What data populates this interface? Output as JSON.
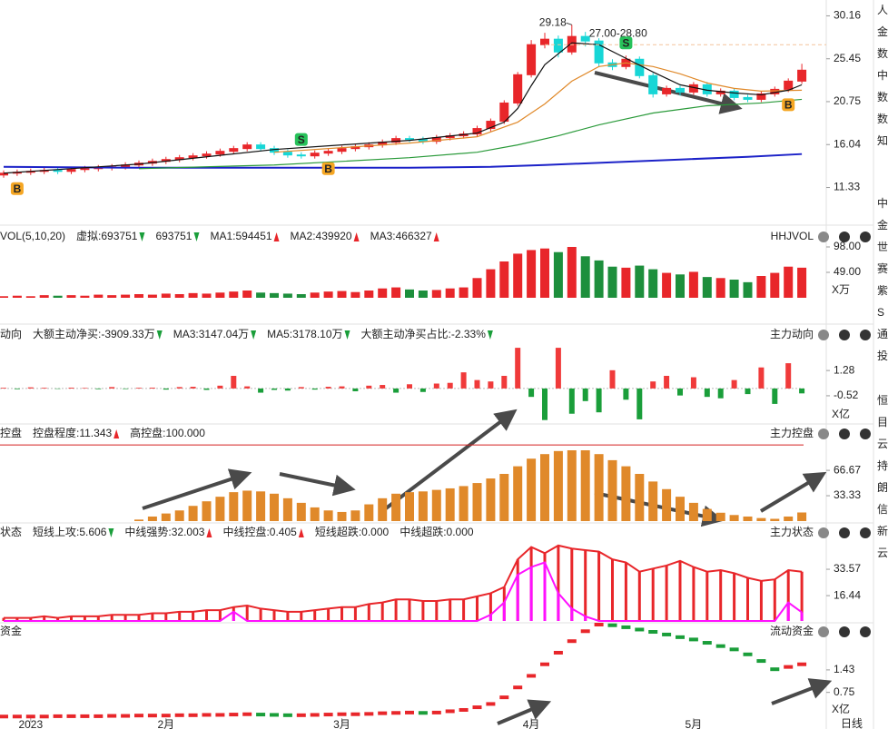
{
  "chart_data": [
    {
      "type": "candlestick",
      "open": [
        12.7,
        12.9,
        13.0,
        13.1,
        13.2,
        13.1,
        13.3,
        13.4,
        13.5,
        13.6,
        13.8,
        14.0,
        14.2,
        14.4,
        14.6,
        14.8,
        15.0,
        15.3,
        15.6,
        16.0,
        15.6,
        15.2,
        14.9,
        14.8,
        15.1,
        15.3,
        15.6,
        15.8,
        16.0,
        16.3,
        16.7,
        16.6,
        16.4,
        16.8,
        17.0,
        17.2,
        17.8,
        18.6,
        20.6,
        23.7,
        27.0,
        27.6,
        26.2,
        27.9,
        27.4,
        25.0,
        24.6,
        25.4,
        23.6,
        21.6,
        22.2,
        21.8,
        22.6,
        21.6,
        21.9,
        21.2,
        21.0,
        21.6,
        22.1,
        23.0
      ],
      "high": [
        13.2,
        13.3,
        13.4,
        13.5,
        13.5,
        13.6,
        13.7,
        13.8,
        13.9,
        14.1,
        14.3,
        14.5,
        14.7,
        14.9,
        15.1,
        15.3,
        15.6,
        15.9,
        16.3,
        16.3,
        15.9,
        15.5,
        15.2,
        15.4,
        15.6,
        15.9,
        16.1,
        16.3,
        16.6,
        17.0,
        17.0,
        16.9,
        17.1,
        17.3,
        17.5,
        18.1,
        18.9,
        20.9,
        24.0,
        27.5,
        28.3,
        28.0,
        29.18,
        28.4,
        27.7,
        25.4,
        25.8,
        25.7,
        23.9,
        22.5,
        22.5,
        22.9,
        22.9,
        22.2,
        22.2,
        21.5,
        21.9,
        22.4,
        23.3,
        24.9
      ],
      "low": [
        12.4,
        12.6,
        12.7,
        12.8,
        12.8,
        12.8,
        13.0,
        13.1,
        13.2,
        13.3,
        13.5,
        13.7,
        13.9,
        14.1,
        14.3,
        14.5,
        14.7,
        15.0,
        15.3,
        15.3,
        14.9,
        14.6,
        14.5,
        14.5,
        14.8,
        15.0,
        15.3,
        15.5,
        15.7,
        16.0,
        16.3,
        16.1,
        16.1,
        16.5,
        16.7,
        16.9,
        17.5,
        18.3,
        20.3,
        23.4,
        26.6,
        25.6,
        25.9,
        26.8,
        24.6,
        24.2,
        24.3,
        23.3,
        21.2,
        21.3,
        21.4,
        21.5,
        21.3,
        21.3,
        20.9,
        20.7,
        20.7,
        21.3,
        21.8,
        22.7
      ],
      "close": [
        12.9,
        13.0,
        13.1,
        13.2,
        13.1,
        13.3,
        13.4,
        13.5,
        13.6,
        13.8,
        14.0,
        14.2,
        14.4,
        14.6,
        14.8,
        15.0,
        15.3,
        15.6,
        16.0,
        15.6,
        15.2,
        14.9,
        14.8,
        15.1,
        15.3,
        15.6,
        15.8,
        16.0,
        16.3,
        16.7,
        16.6,
        16.4,
        16.8,
        17.0,
        17.2,
        17.8,
        18.6,
        20.6,
        23.7,
        27.0,
        27.6,
        26.2,
        27.9,
        27.4,
        25.0,
        24.6,
        25.4,
        23.6,
        21.6,
        22.2,
        21.8,
        22.6,
        21.6,
        21.9,
        21.2,
        21.0,
        21.6,
        22.1,
        23.0,
        24.2
      ],
      "up_color": "#e8262a",
      "down_color": "#17d6d6",
      "ylim": [
        7.5,
        31.5
      ],
      "yticks": [
        30.16,
        25.45,
        20.75,
        16.04,
        11.33
      ],
      "lines": [
        {
          "color": "#1c22c8",
          "x": [
            0,
            10,
            20,
            30,
            36,
            40,
            45,
            50,
            55,
            59
          ],
          "values": [
            13.6,
            13.5,
            13.5,
            13.5,
            13.6,
            13.8,
            14.1,
            14.4,
            14.7,
            15.0
          ]
        },
        {
          "color": "#2a9a3a",
          "x": [
            10,
            20,
            30,
            35,
            38,
            41,
            44,
            48,
            52,
            56,
            59
          ],
          "values": [
            13.4,
            13.8,
            14.6,
            15.2,
            16.0,
            17.0,
            18.2,
            19.5,
            20.3,
            20.6,
            21.0
          ]
        },
        {
          "color": "#e0892a",
          "x": [
            20,
            30,
            35,
            38,
            40,
            42,
            44,
            46,
            48,
            50,
            52,
            54,
            56,
            59
          ],
          "values": [
            15.2,
            16.2,
            16.9,
            18.5,
            20.5,
            23.0,
            24.6,
            25.0,
            24.6,
            23.8,
            22.8,
            22.2,
            21.9,
            22.0
          ]
        },
        {
          "color": "#111111",
          "x": [
            0,
            10,
            20,
            30,
            35,
            37,
            38,
            39,
            40,
            42,
            44,
            46,
            48,
            50,
            52,
            54,
            56,
            58,
            59
          ],
          "values": [
            12.9,
            13.9,
            15.5,
            16.5,
            17.3,
            18.5,
            20.0,
            22.5,
            24.8,
            27.2,
            27.0,
            25.5,
            24.0,
            22.6,
            22.0,
            21.7,
            21.5,
            22.0,
            22.6
          ]
        }
      ],
      "peak_label": {
        "x": 42,
        "value": 29.18,
        "label": "29.18"
      },
      "range_label": {
        "x": 43,
        "range": [
          27.0,
          28.8
        ],
        "label": "27.00-28.80"
      },
      "signals": [
        {
          "kind": "buy",
          "label": "B",
          "x": 1
        },
        {
          "kind": "sell",
          "label": "S",
          "x": 22
        },
        {
          "kind": "buy",
          "label": "B",
          "x": 24
        },
        {
          "kind": "sell",
          "label": "S",
          "x": 46
        },
        {
          "kind": "buy",
          "label": "B",
          "x": 58
        }
      ]
    },
    {
      "type": "bar",
      "name": "VOL(5,10,20)",
      "title": "HHJVOL",
      "color_by": "price",
      "legend": [
        {
          "text": "虚拟:693751",
          "color": "#222222",
          "trend": "down"
        },
        {
          "text": "693751",
          "color": "#e0892a",
          "trend": "down"
        },
        {
          "text": "MA1:594451",
          "color": "#e020e0",
          "trend": "up"
        },
        {
          "text": "MA2:439920",
          "color": "#1a9e3a",
          "trend": "up"
        },
        {
          "text": "MA3:466327",
          "color": "#aaaaaa",
          "trend": "up"
        }
      ],
      "values": [
        3,
        4,
        3,
        5,
        4,
        5,
        4,
        6,
        5,
        6,
        7,
        6,
        8,
        7,
        9,
        8,
        10,
        12,
        14,
        10,
        9,
        8,
        7,
        10,
        12,
        13,
        11,
        14,
        18,
        20,
        16,
        14,
        15,
        18,
        20,
        38,
        55,
        70,
        85,
        92,
        95,
        88,
        98,
        80,
        72,
        60,
        58,
        62,
        55,
        48,
        45,
        50,
        40,
        38,
        35,
        30,
        42,
        48,
        60,
        58
      ],
      "colors": {
        "up": "#e8262a",
        "down": "#1d8f3c"
      },
      "ylim": [
        0,
        133
      ],
      "yticks": [
        {
          "value": 98,
          "label": "98.00"
        },
        {
          "value": 49,
          "label": "49.00"
        }
      ],
      "unit": "X万"
    },
    {
      "type": "bar",
      "name": "动向",
      "title": "主力动向",
      "color_by": "sign",
      "legend": [
        {
          "text": "大额主动净买:-3909.33万",
          "color": "#e8262a",
          "trend": "down"
        },
        {
          "text": "MA3:3147.04万",
          "color": "#e0892a",
          "trend": "down"
        },
        {
          "text": "MA5:3178.10万",
          "color": "#e020e0",
          "trend": "down"
        },
        {
          "text": "大额主动净买占比:-2.33%",
          "color": "#e8262a",
          "trend": "down"
        }
      ],
      "values": [
        0.05,
        -0.05,
        0.08,
        0.05,
        -0.03,
        0.06,
        0.04,
        -0.05,
        0.1,
        -0.04,
        0.05,
        0.06,
        -0.08,
        0.1,
        0.12,
        -0.1,
        0.2,
        0.9,
        0.15,
        -0.3,
        -0.1,
        -0.15,
        0.1,
        -0.08,
        0.12,
        0.15,
        -0.2,
        0.2,
        0.25,
        -0.3,
        0.3,
        -0.25,
        0.35,
        0.4,
        1.15,
        0.6,
        0.5,
        0.9,
        2.9,
        -0.6,
        -2.25,
        2.9,
        -1.8,
        -0.9,
        -1.7,
        1.3,
        -0.8,
        -2.2,
        0.5,
        0.9,
        -0.5,
        0.8,
        -0.6,
        -0.7,
        0.6,
        -0.4,
        1.5,
        -1.1,
        1.8,
        -0.35
      ],
      "colors": {
        "up": "#f03a3a",
        "down": "#1a9e3a"
      },
      "ylim": [
        -2.4,
        3.1
      ],
      "yticks": [
        1.28,
        -0.52
      ],
      "unit": "X亿"
    },
    {
      "type": "bar",
      "name": "控盘",
      "title": "主力控盘",
      "legend": [
        {
          "text": "控盘程度:11.343",
          "color": "#e0892a",
          "trend": "up"
        },
        {
          "text": "高控盘:100.000",
          "color": "#d42020"
        }
      ],
      "values": [
        0,
        0,
        0,
        0,
        0,
        0,
        0,
        0,
        0,
        0,
        2,
        6,
        10,
        14,
        20,
        26,
        32,
        38,
        40,
        39,
        36,
        30,
        24,
        18,
        14,
        12,
        14,
        22,
        30,
        36,
        38,
        39,
        41,
        43,
        46,
        50,
        56,
        62,
        72,
        82,
        88,
        92,
        93,
        93,
        88,
        80,
        72,
        62,
        52,
        42,
        32,
        24,
        16,
        11,
        8,
        6,
        4,
        3,
        6,
        11.343
      ],
      "color": "#e0892a",
      "hline": {
        "value": 100,
        "color": "#d42020"
      },
      "ylim": [
        0,
        124
      ],
      "yticks": [
        66.67,
        33.33
      ]
    },
    {
      "type": "bar",
      "name": "状态",
      "title": "主力状态",
      "legend": [
        {
          "text": "短线上攻:5.606",
          "color": "#e020e0",
          "trend": "down"
        },
        {
          "text": "中线强势:32.003",
          "color": "#e8262a",
          "trend": "up"
        },
        {
          "text": "中线控盘:0.405",
          "color": "#e0892a",
          "trend": "up"
        },
        {
          "text": "短线超跌:0.000",
          "color": "#1c22c8"
        },
        {
          "text": "中线超跌:0.000",
          "color": "#1a9e3a"
        }
      ],
      "series": [
        {
          "color": "#e8262a",
          "values": [
            2,
            2,
            2,
            3,
            2,
            3,
            3,
            3,
            4,
            4,
            4,
            5,
            5,
            6,
            6,
            7,
            7,
            9,
            10,
            8,
            7,
            6,
            6,
            7,
            8,
            9,
            9,
            11,
            12,
            14,
            14,
            13,
            13,
            14,
            14,
            16,
            18,
            22,
            40,
            48,
            44,
            49,
            47,
            46,
            45,
            40,
            38,
            32,
            34,
            36,
            39,
            35,
            32,
            33,
            31,
            28,
            26,
            27,
            33,
            32.003
          ]
        },
        {
          "color": "#ff10ff",
          "values": [
            0,
            0,
            0,
            0,
            0,
            0,
            0,
            0,
            0,
            0,
            0,
            0,
            0,
            0,
            0,
            0,
            0,
            6,
            0,
            0,
            0,
            0,
            0,
            0,
            0,
            0,
            0,
            0,
            0,
            0,
            0,
            0,
            0,
            0,
            0,
            0,
            4,
            12,
            30,
            35,
            38,
            18,
            8,
            3,
            0,
            0,
            0,
            0,
            0,
            0,
            0,
            0,
            0,
            0,
            0,
            0,
            0,
            0,
            12,
            5.606
          ]
        }
      ],
      "ylim": [
        0,
        55.4
      ],
      "yticks": [
        33.57,
        16.44
      ]
    },
    {
      "type": "step",
      "name": "资金",
      "title": "流动资金",
      "values": [
        0.02,
        0.02,
        0.02,
        0.02,
        0.03,
        0.03,
        0.03,
        0.03,
        0.04,
        0.04,
        0.05,
        0.05,
        0.05,
        0.06,
        0.06,
        0.07,
        0.07,
        0.08,
        0.09,
        0.08,
        0.07,
        0.06,
        0.06,
        0.07,
        0.08,
        0.09,
        0.09,
        0.1,
        0.12,
        0.13,
        0.14,
        0.13,
        0.14,
        0.18,
        0.22,
        0.3,
        0.4,
        0.6,
        0.9,
        1.25,
        1.6,
        1.95,
        2.3,
        2.6,
        2.8,
        2.78,
        2.72,
        2.65,
        2.58,
        2.5,
        2.42,
        2.35,
        2.25,
        2.15,
        2.05,
        1.9,
        1.7,
        1.45,
        1.52,
        1.6
      ],
      "colors": {
        "up": "#e8262a",
        "down": "#1a9e3a"
      },
      "ylim": [
        0,
        2.8
      ],
      "yticks": [
        1.43,
        0.75
      ],
      "unit": "X亿",
      "xticks": [
        {
          "value": 2,
          "label": "2023"
        },
        {
          "value": 12,
          "label": "2月"
        },
        {
          "value": 25,
          "label": "3月"
        },
        {
          "value": 39,
          "label": "4月"
        },
        {
          "value": 51,
          "label": "5月"
        }
      ]
    }
  ],
  "period": "日线",
  "sidebar": [
    [
      "人",
      "金",
      "数",
      "中",
      "数",
      "数",
      "知"
    ],
    [
      "中",
      "金",
      "世",
      "赛",
      "紫",
      "S",
      "通",
      "投"
    ],
    [
      "恒",
      "目",
      "云",
      "持",
      "朗",
      "信",
      "新",
      "云"
    ]
  ]
}
